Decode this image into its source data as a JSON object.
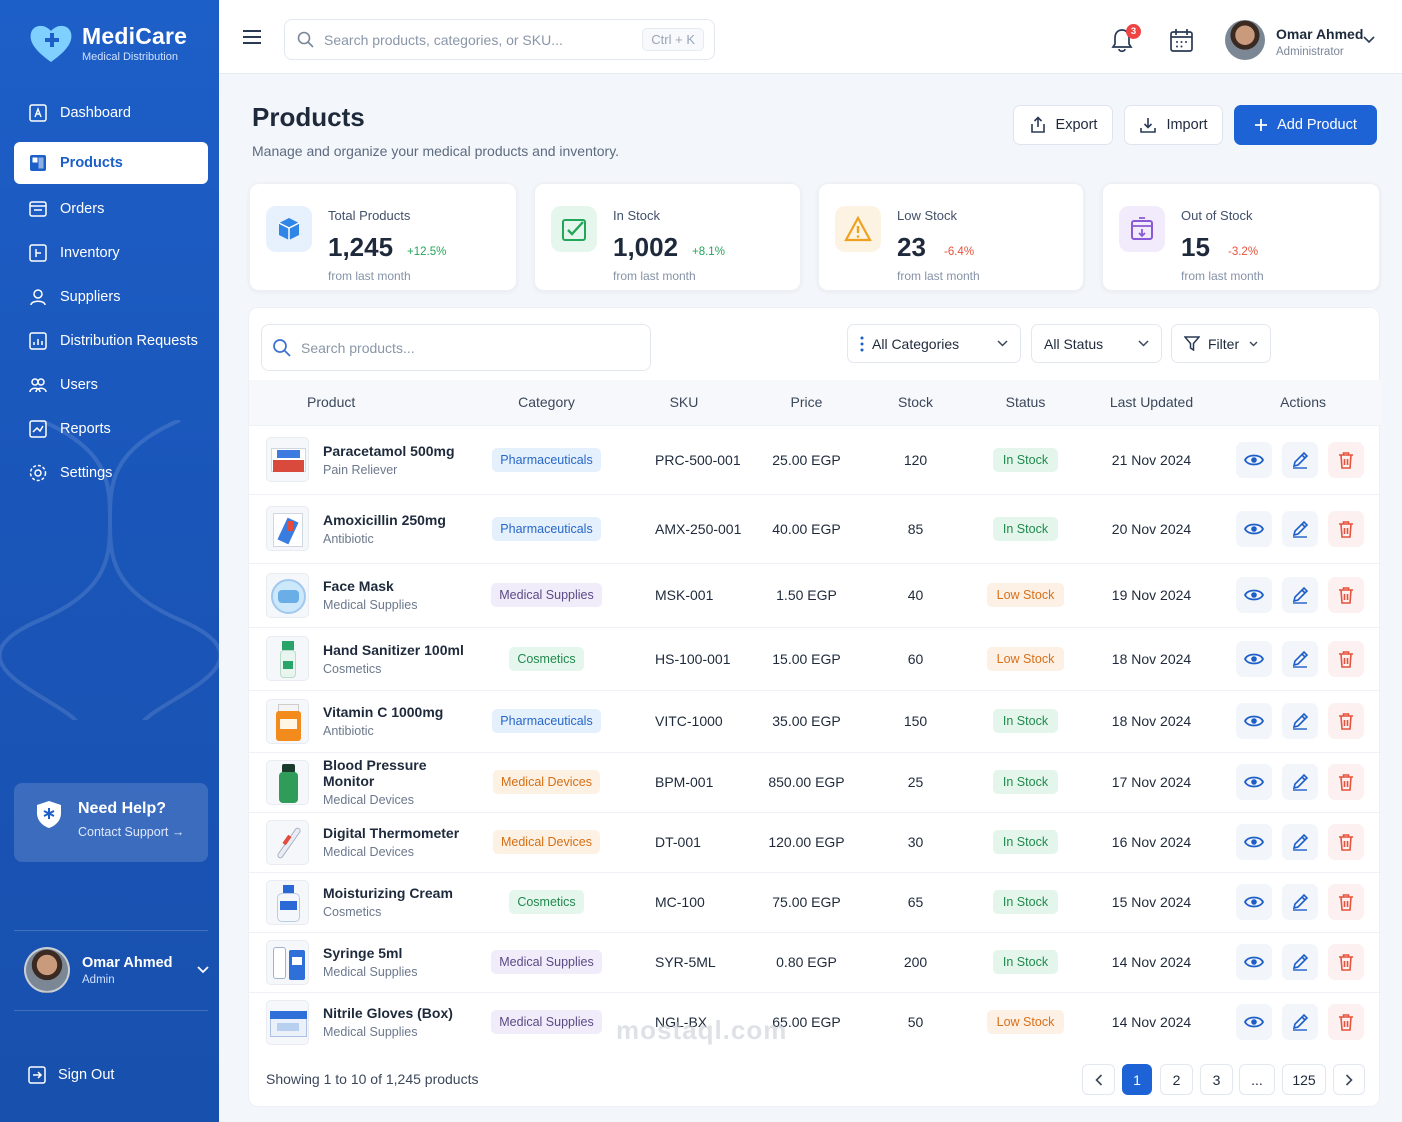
{
  "brand": {
    "name": "MediCare",
    "subtitle": "Medical Distribution"
  },
  "nav": [
    {
      "label": "Dashboard",
      "icon": "dashboard-icon"
    },
    {
      "label": "Products",
      "icon": "products-icon",
      "active": true
    },
    {
      "label": "Orders",
      "icon": "orders-icon"
    },
    {
      "label": "Inventory",
      "icon": "inventory-icon"
    },
    {
      "label": "Suppliers",
      "icon": "suppliers-icon"
    },
    {
      "label": "Distribution Requests",
      "icon": "distribution-icon"
    },
    {
      "label": "Users",
      "icon": "users-icon"
    },
    {
      "label": "Reports",
      "icon": "reports-icon"
    },
    {
      "label": "Settings",
      "icon": "settings-icon"
    }
  ],
  "help": {
    "title": "Need Help?",
    "link": "Contact Support"
  },
  "sidebar_user": {
    "name": "Omar Ahmed",
    "role": "Admin"
  },
  "signout": "Sign Out",
  "topbar": {
    "search_placeholder": "Search products, categories, or SKU...",
    "shortcut": "Ctrl + K",
    "notifications": "3",
    "user_name": "Omar Ahmed",
    "user_role": "Administrator"
  },
  "page": {
    "title": "Products",
    "subtitle": "Manage and organize your medical products and inventory.",
    "export": "Export",
    "import": "Import",
    "add": "Add Product"
  },
  "stats": [
    {
      "label": "Total Products",
      "value": "1,245",
      "change": "+12.5%",
      "from": "from last month",
      "trend": "up",
      "color": "#2f86e6",
      "icon": "cube-icon"
    },
    {
      "label": "In Stock",
      "value": "1,002",
      "change": "+8.1%",
      "from": "from last month",
      "trend": "up",
      "color": "#23a55a",
      "icon": "check-icon"
    },
    {
      "label": "Low Stock",
      "value": "23",
      "change": "-6.4%",
      "from": "from last month",
      "trend": "down",
      "color": "#f0a020",
      "icon": "warning-icon"
    },
    {
      "label": "Out of Stock",
      "value": "15",
      "change": "-3.2%",
      "from": "from last month",
      "trend": "down",
      "color": "#8a5ad6",
      "icon": "box-off-icon"
    }
  ],
  "filters": {
    "search_placeholder": "Search products...",
    "categories": "All Categories",
    "status": "All Status",
    "filter": "Filter"
  },
  "table": {
    "columns": [
      "Product",
      "Category",
      "SKU",
      "Price",
      "Stock",
      "Status",
      "Last Updated",
      "Actions"
    ],
    "rows": [
      {
        "name": "Paracetamol 500mg",
        "type": "Pain Reliever",
        "category": "Pharmaceuticals",
        "sku": "PRC-500-001",
        "price": "25.00 EGP",
        "stock": "120",
        "status": "In Stock",
        "updated": "21 Nov 2024"
      },
      {
        "name": "Amoxicillin 250mg",
        "type": "Antibiotic",
        "category": "Pharmaceuticals",
        "sku": "AMX-250-001",
        "price": "40.00 EGP",
        "stock": "85",
        "status": "In Stock",
        "updated": "20 Nov 2024"
      },
      {
        "name": "Face Mask",
        "type": "Medical Supplies",
        "category": "Medical Supplies",
        "sku": "MSK-001",
        "price": "1.50 EGP",
        "stock": "40",
        "status": "Low Stock",
        "updated": "19 Nov 2024"
      },
      {
        "name": "Hand Sanitizer 100ml",
        "type": "Cosmetics",
        "category": "Cosmetics",
        "sku": "HS-100-001",
        "price": "15.00 EGP",
        "stock": "60",
        "status": "Low Stock",
        "updated": "18 Nov 2024"
      },
      {
        "name": "Vitamin C 1000mg",
        "type": "Antibiotic",
        "category": "Pharmaceuticals",
        "sku": "VITC-1000",
        "price": "35.00 EGP",
        "stock": "150",
        "status": "In Stock",
        "updated": "18 Nov 2024"
      },
      {
        "name": "Blood Pressure Monitor",
        "type": "Medical Devices",
        "category": "Medical Devices",
        "sku": "BPM-001",
        "price": "850.00 EGP",
        "stock": "25",
        "status": "In Stock",
        "updated": "17 Nov 2024"
      },
      {
        "name": "Digital Thermometer",
        "type": "Medical Devices",
        "category": "Medical Devices",
        "sku": "DT-001",
        "price": "120.00 EGP",
        "stock": "30",
        "status": "In Stock",
        "updated": "16 Nov 2024"
      },
      {
        "name": "Moisturizing Cream",
        "type": "Cosmetics",
        "category": "Cosmetics",
        "sku": "MC-100",
        "price": "75.00 EGP",
        "stock": "65",
        "status": "In Stock",
        "updated": "15 Nov 2024"
      },
      {
        "name": "Syringe 5ml",
        "type": "Medical Supplies",
        "category": "Medical Supplies",
        "sku": "SYR-5ML",
        "price": "0.80 EGP",
        "stock": "200",
        "status": "In Stock",
        "updated": "14 Nov 2024"
      },
      {
        "name": "Nitrile Gloves (Box)",
        "type": "Medical Supplies",
        "category": "Medical Supplies",
        "sku": "NGL-BX",
        "price": "65.00 EGP",
        "stock": "50",
        "status": "Low Stock",
        "updated": "14 Nov 2024"
      }
    ]
  },
  "footer": {
    "showing": "Showing 1 to 10 of 1,245 products",
    "pages": [
      "1",
      "2",
      "3",
      "...",
      "125"
    ],
    "current": "1"
  },
  "watermark": "mostaql.com"
}
